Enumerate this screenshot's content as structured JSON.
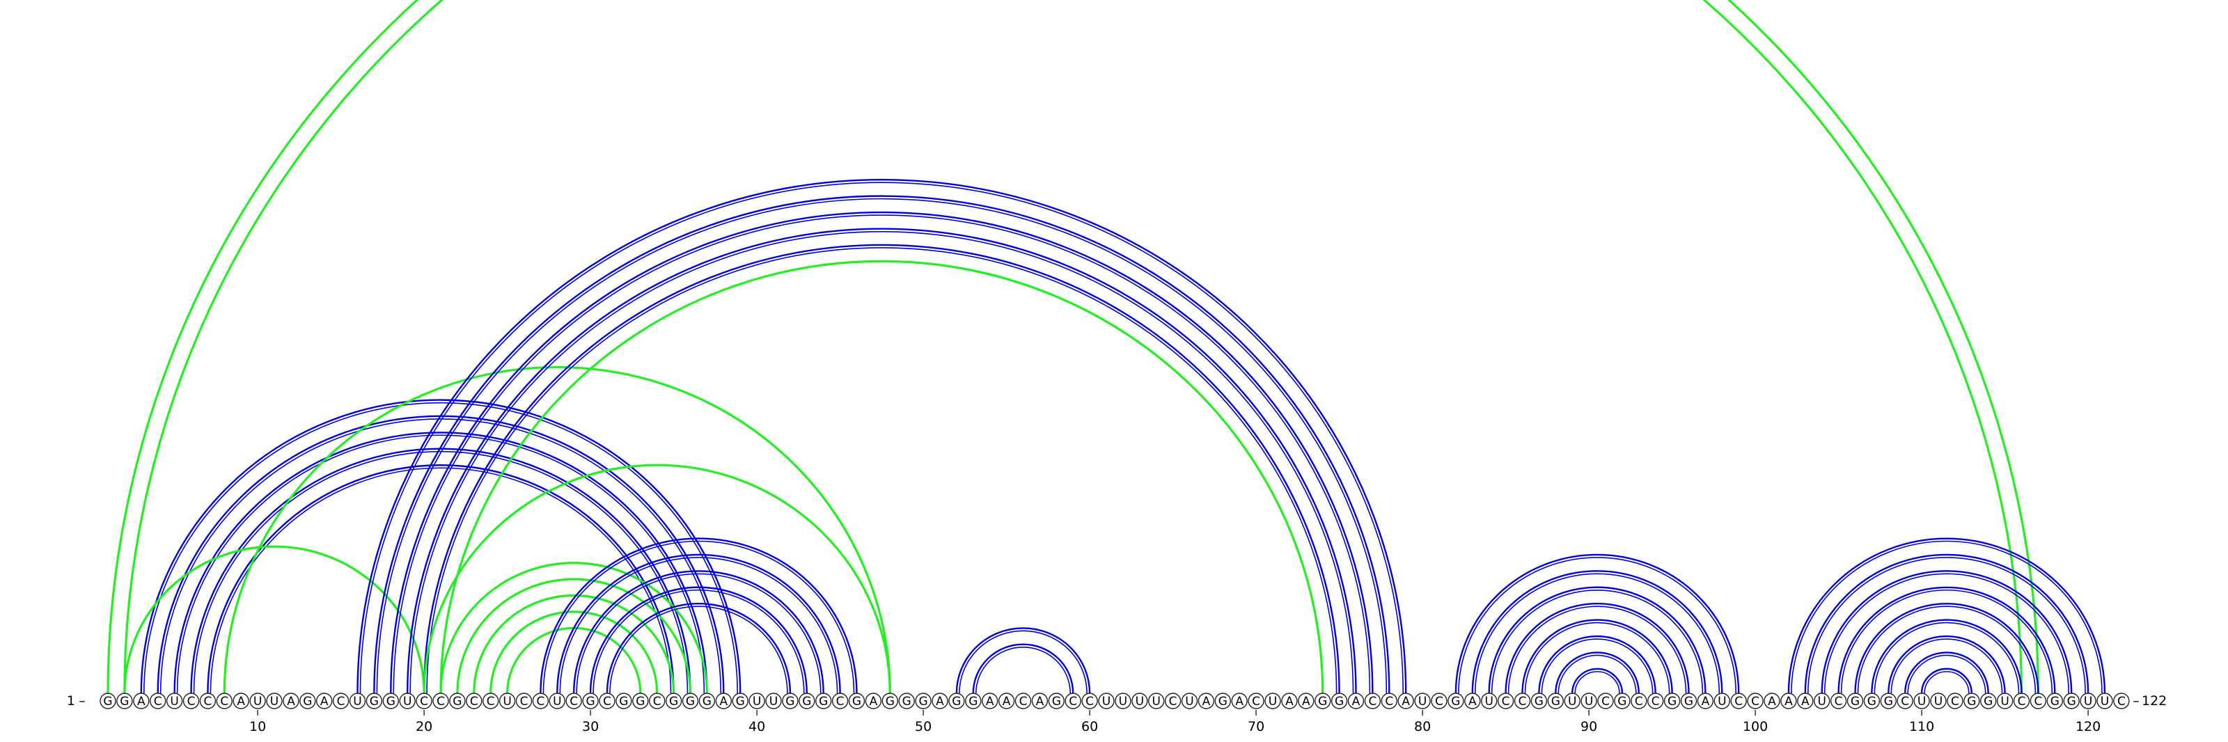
{
  "sequence": "GGACUCCCAUUAGACUGGUCCGCCUCCUCGCGGCGGGAGUUGGGCGAGGGAGGAACAGCCUUUUCUAGACUAAGGACCAUCGAUCCGGUUCGCCGGAUCCAAAUCGGGCUUCGGUCCGGUUC",
  "labels": {
    "start": "1",
    "end": "122",
    "ticks": [
      10,
      20,
      30,
      40,
      50,
      60,
      70,
      80,
      90,
      100,
      110,
      120
    ]
  },
  "colors": {
    "blue_arc": "#0000dd",
    "green_arc": "#22ee22",
    "base_stroke": "#222222",
    "axis": "#333333"
  },
  "arcs": [
    {
      "color": "green",
      "pairs": [
        [
          1,
          117
        ],
        [
          2,
          116
        ]
      ]
    },
    {
      "color": "blue",
      "pairs": [
        [
          3,
          39
        ],
        [
          4,
          38
        ],
        [
          5,
          37
        ],
        [
          6,
          36
        ],
        [
          7,
          35
        ]
      ]
    },
    {
      "color": "green",
      "pairs": [
        [
          2,
          20
        ],
        [
          8,
          48
        ],
        [
          21,
          74
        ]
      ]
    },
    {
      "color": "blue",
      "pairs": [
        [
          16,
          79
        ],
        [
          17,
          78
        ],
        [
          18,
          77
        ],
        [
          19,
          76
        ],
        [
          20,
          75
        ]
      ]
    },
    {
      "color": "green",
      "pairs": [
        [
          21,
          37
        ],
        [
          22,
          36
        ],
        [
          23,
          35
        ],
        [
          24,
          34
        ],
        [
          25,
          33
        ]
      ]
    },
    {
      "color": "blue",
      "pairs": [
        [
          27,
          46
        ],
        [
          28,
          45
        ],
        [
          29,
          44
        ],
        [
          30,
          43
        ],
        [
          31,
          42
        ]
      ]
    },
    {
      "color": "green",
      "pairs": [
        [
          48,
          20
        ]
      ]
    },
    {
      "color": "blue",
      "pairs": [
        [
          52,
          60
        ],
        [
          53,
          59
        ]
      ]
    },
    {
      "color": "blue",
      "pairs": [
        [
          82,
          99
        ],
        [
          83,
          98
        ],
        [
          84,
          97
        ],
        [
          85,
          96
        ],
        [
          86,
          95
        ],
        [
          87,
          94
        ],
        [
          88,
          93
        ],
        [
          89,
          92
        ]
      ]
    },
    {
      "color": "blue",
      "pairs": [
        [
          102,
          121
        ],
        [
          103,
          120
        ],
        [
          104,
          119
        ],
        [
          105,
          118
        ],
        [
          106,
          117
        ],
        [
          107,
          116
        ],
        [
          108,
          115
        ],
        [
          109,
          114
        ],
        [
          110,
          113
        ]
      ]
    }
  ]
}
